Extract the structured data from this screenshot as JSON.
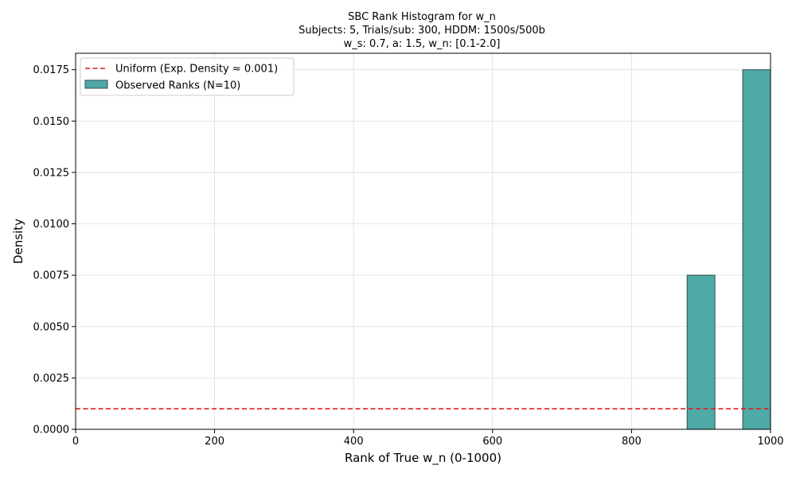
{
  "chart_data": {
    "type": "bar",
    "title_lines": [
      "SBC Rank Histogram for w_n",
      "Subjects: 5, Trials/sub: 300, HDDM: 1500s/500b",
      "w_s: 0.7, a: 1.5, w_n: [0.1-2.0]"
    ],
    "xlabel": "Rank of True w_n (0-1000)",
    "ylabel": "Density",
    "xlim": [
      0,
      1000
    ],
    "ylim": [
      0,
      0.0183
    ],
    "x_ticks": [
      0,
      200,
      400,
      600,
      800,
      1000
    ],
    "y_ticks": [
      0.0,
      0.0025,
      0.005,
      0.0075,
      0.01,
      0.0125,
      0.015,
      0.0175
    ],
    "x_tick_labels": [
      "0",
      "200",
      "400",
      "600",
      "800",
      "1000"
    ],
    "y_tick_labels": [
      "0.0000",
      "0.0025",
      "0.0050",
      "0.0075",
      "0.0100",
      "0.0125",
      "0.0150",
      "0.0175"
    ],
    "grid": true,
    "legend_position": "upper-left",
    "bars": [
      {
        "x_start": 880,
        "x_end": 920,
        "density": 0.0075
      },
      {
        "x_start": 960,
        "x_end": 1000,
        "density": 0.0175
      }
    ],
    "uniform_line": {
      "value": 0.001
    },
    "legend": {
      "uniform_label": "Uniform (Exp. Density ≈ 0.001)",
      "observed_label": "Observed Ranks (N=10)"
    },
    "colors": {
      "bar_fill": "#4fa9a6",
      "bar_edge": "#2f4f4f",
      "uniform_line": "#e31a1c",
      "grid": "#dddddd"
    }
  }
}
